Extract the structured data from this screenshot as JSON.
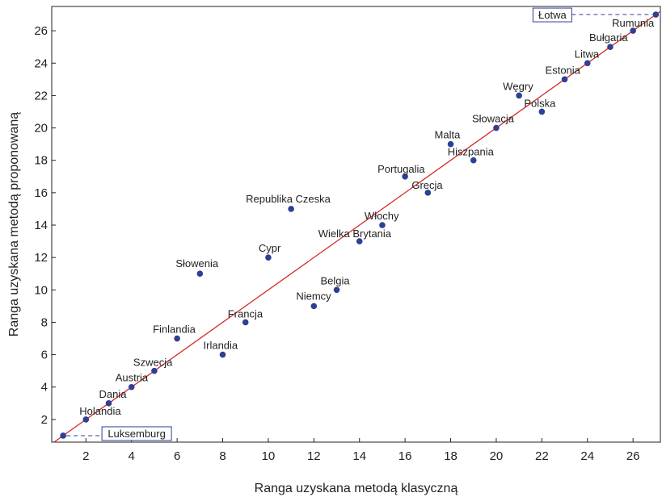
{
  "chart_data": {
    "type": "scatter",
    "xlabel": "Ranga uzyskana metodą klasyczną",
    "ylabel": "Ranga uzyskana metodą proponowaną",
    "xlim": [
      0.5,
      27.2
    ],
    "ylim": [
      0.6,
      27.5
    ],
    "xticks": [
      2,
      4,
      6,
      8,
      10,
      12,
      14,
      16,
      18,
      20,
      22,
      24,
      26
    ],
    "yticks": [
      2,
      4,
      6,
      8,
      10,
      12,
      14,
      16,
      18,
      20,
      22,
      24,
      26
    ],
    "grid": false,
    "points": [
      {
        "label": "Luksemburg",
        "x": 1,
        "y": 1,
        "callout": true
      },
      {
        "label": "Holandia",
        "x": 2,
        "y": 2
      },
      {
        "label": "Dania",
        "x": 3,
        "y": 3
      },
      {
        "label": "Austria",
        "x": 4,
        "y": 4
      },
      {
        "label": "Szwecja",
        "x": 5,
        "y": 5
      },
      {
        "label": "Finlandia",
        "x": 6,
        "y": 7
      },
      {
        "label": "Słowenia",
        "x": 7,
        "y": 11
      },
      {
        "label": "Irlandia",
        "x": 8,
        "y": 6
      },
      {
        "label": "Francja",
        "x": 9,
        "y": 8
      },
      {
        "label": "Cypr",
        "x": 10,
        "y": 12
      },
      {
        "label": "Republika Czeska",
        "x": 11,
        "y": 15
      },
      {
        "label": "Niemcy",
        "x": 12,
        "y": 9
      },
      {
        "label": "Belgia",
        "x": 13,
        "y": 10
      },
      {
        "label": "Wielka Brytania",
        "x": 14,
        "y": 13
      },
      {
        "label": "Włochy",
        "x": 15,
        "y": 14
      },
      {
        "label": "Portugalia",
        "x": 16,
        "y": 17
      },
      {
        "label": "Grecja",
        "x": 17,
        "y": 16
      },
      {
        "label": "Malta",
        "x": 18,
        "y": 19
      },
      {
        "label": "Hiszpania",
        "x": 19,
        "y": 18
      },
      {
        "label": "Słowacja",
        "x": 20,
        "y": 20
      },
      {
        "label": "Węgry",
        "x": 21,
        "y": 22
      },
      {
        "label": "Polska",
        "x": 22,
        "y": 21
      },
      {
        "label": "Estonia",
        "x": 23,
        "y": 23
      },
      {
        "label": "Litwa",
        "x": 24,
        "y": 24
      },
      {
        "label": "Bułgaria",
        "x": 25,
        "y": 25
      },
      {
        "label": "Rumunia",
        "x": 26,
        "y": 26
      },
      {
        "label": "Łotwa",
        "x": 27,
        "y": 27,
        "callout": true
      }
    ],
    "reference_line": {
      "slope": 1,
      "intercept": 0
    },
    "colors": {
      "points": "#2e3f94",
      "line": "#d62a2a",
      "callout_box": "#2e3f94",
      "axis": "#222222"
    }
  }
}
